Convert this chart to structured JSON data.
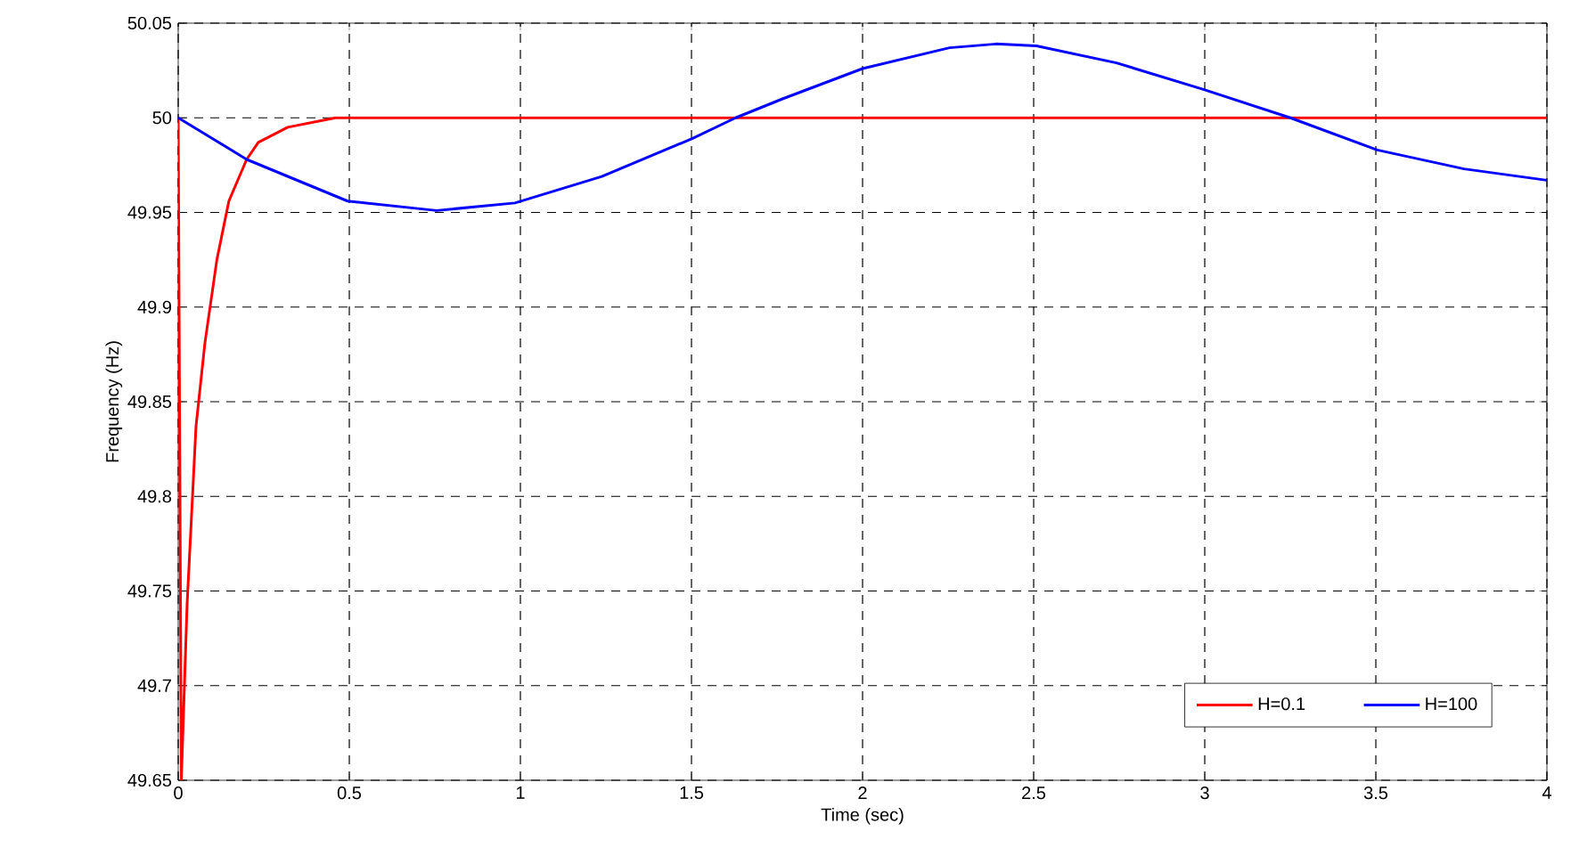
{
  "chart_data": {
    "type": "line",
    "xlabel": "Time (sec)",
    "ylabel": "Frequency (Hz)",
    "xlim": [
      0,
      4
    ],
    "ylim": [
      49.65,
      50.05
    ],
    "xticks": [
      0,
      0.5,
      1,
      1.5,
      2,
      2.5,
      3,
      3.5,
      4
    ],
    "yticks": [
      49.65,
      49.7,
      49.75,
      49.8,
      49.85,
      49.9,
      49.95,
      50,
      50.05
    ],
    "grid": true,
    "legend": "bottom right",
    "marker": "none",
    "line_style": "solid",
    "series": [
      {
        "name": "H=0.1",
        "color": "#ff0000",
        "x": [
          0,
          0.009,
          0.026,
          0.052,
          0.078,
          0.113,
          0.148,
          0.2,
          0.234,
          0.32,
          0.46,
          1,
          2,
          3,
          4
        ],
        "values": [
          50,
          49.65,
          49.743,
          49.837,
          49.881,
          49.925,
          49.956,
          49.978,
          49.987,
          49.995,
          50,
          50,
          50,
          50,
          50
        ]
      },
      {
        "name": "H=100",
        "color": "#0000ff",
        "x": [
          0,
          0.2,
          0.495,
          0.755,
          0.984,
          1.238,
          1.502,
          1.629,
          1.766,
          2.0,
          2.254,
          2.39,
          2.508,
          2.742,
          2.996,
          3.25,
          3.504,
          3.758,
          4.0
        ],
        "values": [
          50,
          49.978,
          49.956,
          49.951,
          49.955,
          49.969,
          49.989,
          50.0,
          50.01,
          50.026,
          50.037,
          50.039,
          50.038,
          50.029,
          50.015,
          50.0,
          49.983,
          49.973,
          49.967
        ]
      }
    ]
  }
}
